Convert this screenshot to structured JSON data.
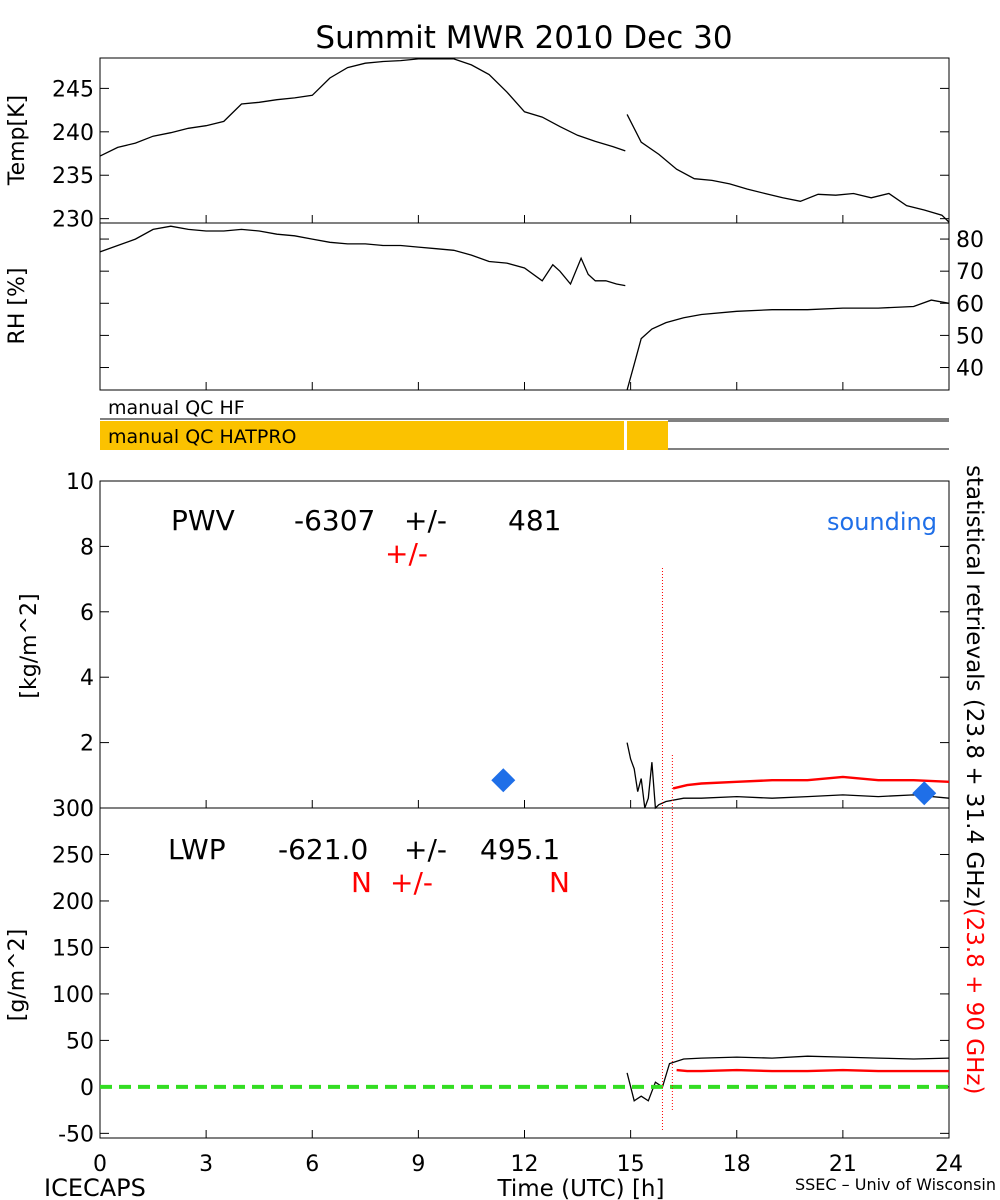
{
  "title": "Summit MWR 2010 Dec 30",
  "footer": {
    "left": "ICECAPS",
    "center": "Time (UTC) [h]",
    "right": "SSEC – Univ of Wisconsin"
  },
  "colors": {
    "black": "#000000",
    "red": "#ff0000",
    "blue": "#1f6fe8",
    "qc_orange": "#fbc200",
    "zero_line": "#33dd22"
  },
  "right_label": {
    "black_part": "statistical retrievals (23.8 + 31.4 GHz)",
    "red_part": "(23.8 + 90 GHz)"
  },
  "qc": {
    "hf_label": "manual QC HF",
    "hatpro_label": "manual QC HATPRO",
    "hatpro_flagged_until_h": 16.0,
    "hatpro_gap_h": 14.85
  },
  "chart_data": [
    {
      "id": "temp",
      "type": "line",
      "ylabel": "Temp[K]",
      "ylim": [
        229.5,
        248.5
      ],
      "yticks": [
        230,
        235,
        240,
        245
      ],
      "xlim": [
        0,
        24
      ],
      "series": [
        {
          "name": "Temp before 14.9 h",
          "x": [
            0,
            0.5,
            1,
            1.5,
            2,
            2.5,
            3,
            3.5,
            4,
            4.5,
            5,
            5.5,
            6,
            6.5,
            7,
            7.5,
            8,
            8.5,
            9,
            9.5,
            10,
            10.5,
            11,
            11.5,
            12,
            12.5,
            13,
            13.5,
            14,
            14.5,
            14.85
          ],
          "values": [
            237.2,
            238.2,
            238.7,
            239.5,
            239.9,
            240.4,
            240.7,
            241.2,
            243.2,
            243.4,
            243.7,
            243.9,
            244.2,
            246.2,
            247.4,
            247.9,
            248.1,
            248.2,
            248.4,
            248.4,
            248.4,
            247.7,
            246.6,
            244.6,
            242.3,
            241.7,
            240.6,
            239.6,
            238.9,
            238.3,
            237.8
          ]
        },
        {
          "name": "Temp after 14.9 h",
          "x": [
            14.9,
            15.3,
            15.8,
            16.3,
            16.8,
            17.3,
            17.8,
            18.3,
            18.8,
            19.3,
            19.8,
            20.3,
            20.8,
            21.3,
            21.8,
            22.3,
            22.8,
            23.3,
            23.8,
            24
          ],
          "values": [
            242.0,
            238.8,
            237.4,
            235.7,
            234.6,
            234.4,
            234.0,
            233.4,
            232.9,
            232.4,
            232.0,
            232.8,
            232.7,
            232.9,
            232.4,
            232.9,
            231.5,
            231.0,
            230.4,
            229.6
          ]
        }
      ]
    },
    {
      "id": "rh",
      "type": "line",
      "ylabel": "RH [%]",
      "ylim": [
        33,
        85
      ],
      "yticks": [
        40,
        50,
        60,
        70,
        80
      ],
      "xlim": [
        0,
        24
      ],
      "series": [
        {
          "name": "RH before 14.9 h",
          "x": [
            0,
            0.5,
            1,
            1.5,
            2,
            2.5,
            3,
            3.5,
            4,
            4.5,
            5,
            5.5,
            6,
            6.5,
            7,
            7.5,
            8,
            8.5,
            9,
            9.5,
            10,
            10.5,
            11,
            11.5,
            12,
            12.5,
            12.8,
            13.0,
            13.3,
            13.6,
            13.8,
            14.0,
            14.3,
            14.6,
            14.85
          ],
          "values": [
            76,
            78,
            80,
            83,
            84,
            83,
            82.5,
            82.5,
            83,
            82.5,
            81.5,
            81,
            80,
            79,
            78.5,
            78.5,
            78,
            78,
            77.5,
            77,
            76.5,
            75,
            73,
            72.5,
            71,
            67,
            72,
            70,
            66,
            74,
            69,
            67,
            67,
            66,
            65.5
          ]
        },
        {
          "name": "RH after 14.9 h",
          "x": [
            14.9,
            15.1,
            15.3,
            15.6,
            16.0,
            16.5,
            17.0,
            18.0,
            19.0,
            20.0,
            21.0,
            22.0,
            23.0,
            23.5,
            24.0
          ],
          "values": [
            33,
            41,
            49,
            52,
            54,
            55.5,
            56.5,
            57.5,
            58,
            58,
            58.5,
            58.5,
            59,
            61,
            60
          ]
        }
      ]
    },
    {
      "id": "pwv",
      "type": "line",
      "ylabel": "[kg/m^2]",
      "ylim": [
        0,
        10
      ],
      "yticks": [
        0,
        2,
        4,
        6,
        8,
        10
      ],
      "xlim": [
        0,
        24
      ],
      "annotation": {
        "label": "PWV",
        "value": "-6307",
        "plusminus": "+/-",
        "error": "481",
        "red_plusminus": "+/-",
        "sounding_label": "sounding"
      },
      "series": [
        {
          "name": "statistical retrieval (23.8 + 31.4 GHz)",
          "x": [
            14.9,
            15.0,
            15.1,
            15.2,
            15.3,
            15.4,
            15.5,
            15.6,
            15.7,
            15.8,
            16.0,
            16.5,
            17.0,
            18.0,
            19.0,
            20.0,
            21.0,
            22.0,
            23.0,
            24.0
          ],
          "values": [
            2.0,
            1.5,
            1.2,
            0.5,
            0.9,
            0.0,
            0.3,
            1.4,
            0.0,
            0.1,
            0.2,
            0.3,
            0.3,
            0.35,
            0.3,
            0.35,
            0.4,
            0.35,
            0.4,
            0.3
          ]
        },
        {
          "name": "statistical retrieval (23.8 + 90 GHz)",
          "x": [
            16.2,
            16.6,
            17.0,
            18.0,
            19.0,
            20.0,
            21.0,
            22.0,
            23.0,
            24.0
          ],
          "values": [
            0.6,
            0.7,
            0.75,
            0.8,
            0.85,
            0.85,
            0.95,
            0.85,
            0.85,
            0.8
          ]
        },
        {
          "name": "sounding",
          "type": "scatter",
          "x": [
            11.4,
            23.3
          ],
          "values": [
            0.85,
            0.45
          ]
        }
      ]
    },
    {
      "id": "lwp",
      "type": "line",
      "ylabel": "[g/m^2]",
      "ylim": [
        -55,
        300
      ],
      "yticks": [
        -50,
        0,
        50,
        100,
        150,
        200,
        250,
        300
      ],
      "xlabel": "Time (UTC) [h]",
      "xlim": [
        0,
        24
      ],
      "xticks": [
        0,
        3,
        6,
        9,
        12,
        15,
        18,
        21,
        24
      ],
      "annotation": {
        "label": "LWP",
        "value": "-621.0",
        "plusminus": "+/-",
        "error": "495.1",
        "red_n1": "N",
        "red_plusminus": "+/-",
        "red_n2": "N"
      },
      "series": [
        {
          "name": "statistical retrieval (23.8 + 31.4 GHz)",
          "x": [
            14.9,
            15.1,
            15.3,
            15.5,
            15.7,
            15.9,
            16.1,
            16.5,
            17.0,
            18.0,
            19.0,
            20.0,
            21.0,
            22.0,
            23.0,
            24.0
          ],
          "values": [
            15,
            -15,
            -10,
            -15,
            5,
            0,
            25,
            30,
            31,
            32,
            31,
            33,
            32,
            31,
            30,
            31
          ]
        },
        {
          "name": "statistical retrieval (23.8 + 90 GHz)",
          "x": [
            16.3,
            16.6,
            17.0,
            18.0,
            19.0,
            20.0,
            21.0,
            22.0,
            23.0,
            24.0
          ],
          "values": [
            18,
            17,
            17,
            18,
            17,
            17,
            18,
            17,
            17,
            17
          ]
        },
        {
          "name": "zero line",
          "x": [
            0,
            24
          ],
          "values": [
            0,
            0
          ]
        }
      ]
    }
  ]
}
